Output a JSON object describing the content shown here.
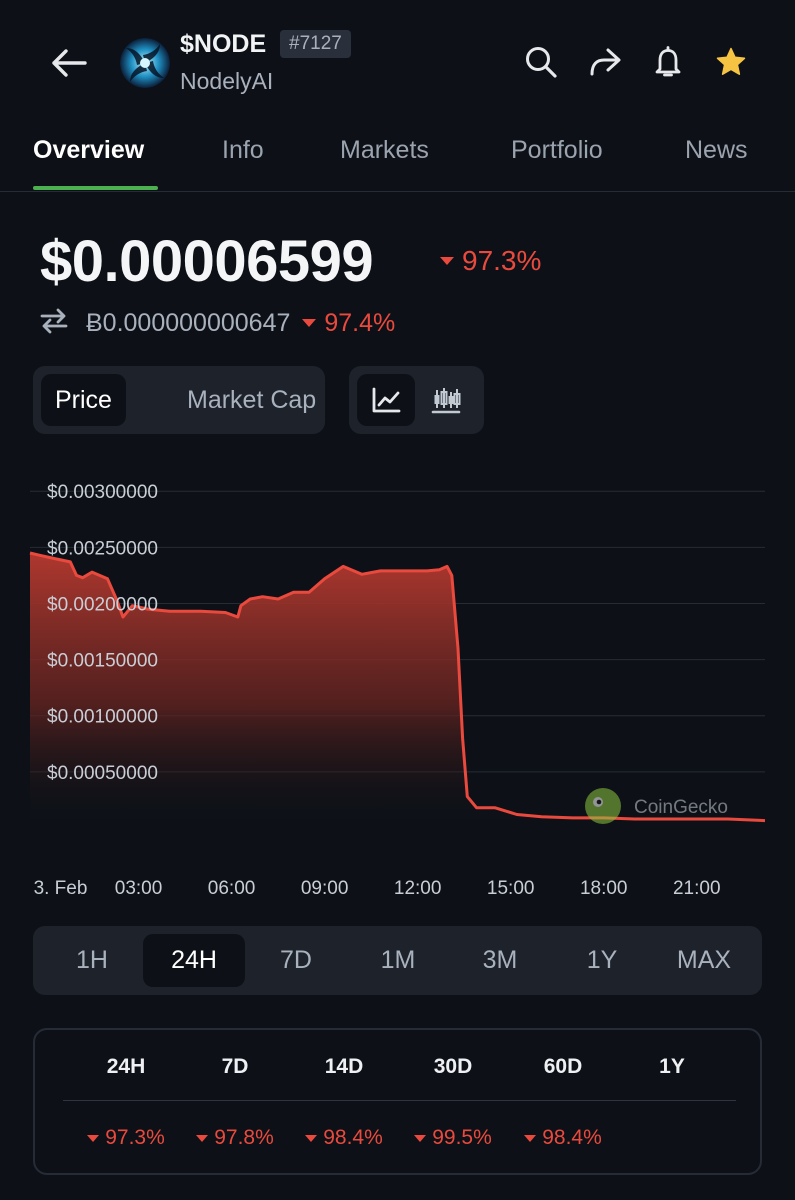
{
  "header": {
    "symbol": "$NODE",
    "rank": "#7127",
    "name": "NodelyAI",
    "icons": [
      "back-arrow-icon",
      "search-icon",
      "share-icon",
      "bell-icon",
      "star-icon"
    ],
    "star_color": "#f6c343"
  },
  "tabs": [
    "Overview",
    "Info",
    "Markets",
    "Portfolio",
    "News"
  ],
  "active_tab": "Overview",
  "price": {
    "usd": "$0.00006599",
    "usd_change": "97.3%",
    "btc": "Ƀ0.000000000647",
    "btc_change": "97.4%"
  },
  "toggles": {
    "metric": [
      "Price",
      "Market Cap"
    ],
    "metric_active": "Price",
    "chart_types": [
      "line-chart-icon",
      "candlestick-icon"
    ],
    "chart_type_active": "line-chart-icon"
  },
  "chart_data": {
    "type": "area",
    "watermark": "CoinGecko",
    "y_tick_labels": [
      "$0.00300000",
      "$0.00250000",
      "$0.00200000",
      "$0.00150000",
      "$0.00100000",
      "$0.00050000"
    ],
    "y_ticks": [
      0.003,
      0.0025,
      0.002,
      0.0015,
      0.001,
      0.0005
    ],
    "x_tick_labels": [
      "3. Feb",
      "03:00",
      "06:00",
      "09:00",
      "12:00",
      "15:00",
      "18:00",
      "21:00"
    ],
    "x_tick_hours": [
      0,
      3,
      6,
      9,
      12,
      15,
      18,
      21
    ],
    "ylim": [
      0,
      0.0031
    ],
    "xlim_hours": [
      -0.5,
      23.2
    ],
    "line_color": "#ea4a3d",
    "grid": true,
    "series": [
      {
        "x_hours": [
          -0.5,
          -0.2,
          0.3,
          0.8,
          1.0,
          1.2,
          1.5,
          2.0,
          2.3,
          2.5,
          2.8,
          3.3,
          4.0,
          5.0,
          5.8,
          6.2,
          6.3,
          6.6,
          7.0,
          7.5,
          8.0,
          8.5,
          9.0,
          9.6,
          10.2,
          10.8,
          11.6,
          12.3,
          12.7,
          12.95,
          13.1,
          13.3,
          13.45,
          13.6,
          13.9,
          14.5,
          15.2,
          16.0,
          17.0,
          18.0,
          19.0,
          20.0,
          21.0,
          22.0,
          23.2
        ],
        "values": [
          0.00245,
          0.00243,
          0.0024,
          0.00237,
          0.00225,
          0.00223,
          0.00228,
          0.00222,
          0.00203,
          0.00188,
          0.00198,
          0.00195,
          0.00193,
          0.00193,
          0.00192,
          0.00188,
          0.00198,
          0.00204,
          0.00206,
          0.00204,
          0.0021,
          0.0021,
          0.00222,
          0.00233,
          0.00226,
          0.00229,
          0.00229,
          0.00229,
          0.0023,
          0.00233,
          0.00225,
          0.0016,
          0.0008,
          0.00028,
          0.00018,
          0.00018,
          0.00012,
          0.0001,
          9e-05,
          9e-05,
          8e-05,
          8e-05,
          8e-05,
          8e-05,
          6.6e-05
        ]
      }
    ]
  },
  "ranges": [
    "1H",
    "24H",
    "7D",
    "1M",
    "3M",
    "1Y",
    "MAX"
  ],
  "range_active": "24H",
  "performance": {
    "headers": [
      "24H",
      "7D",
      "14D",
      "30D",
      "60D",
      "1Y"
    ],
    "values": [
      "97.3%",
      "97.8%",
      "98.4%",
      "99.5%",
      "98.4%",
      ""
    ]
  }
}
